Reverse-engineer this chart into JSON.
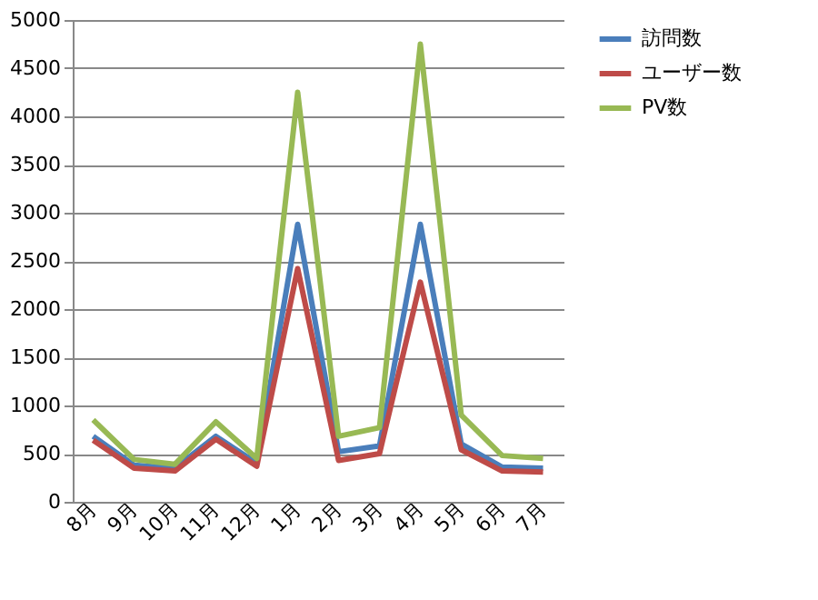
{
  "chart_data": {
    "type": "line",
    "categories": [
      "8月",
      "9月",
      "10月",
      "11月",
      "12月",
      "1月",
      "2月",
      "3月",
      "4月",
      "5月",
      "6月",
      "7月"
    ],
    "series": [
      {
        "name": "訪問数",
        "color": "#4a7ebb",
        "values": [
          680,
          380,
          350,
          680,
          400,
          2880,
          520,
          580,
          2880,
          600,
          360,
          350
        ]
      },
      {
        "name": "ユーザー数",
        "color": "#be4b48",
        "values": [
          640,
          350,
          320,
          650,
          370,
          2420,
          430,
          500,
          2280,
          540,
          320,
          310
        ]
      },
      {
        "name": "PV数",
        "color": "#98b954",
        "values": [
          850,
          440,
          390,
          830,
          450,
          4250,
          680,
          770,
          4750,
          900,
          480,
          450
        ]
      }
    ],
    "ylim": [
      0,
      5000
    ],
    "yticks": [
      0,
      500,
      1000,
      1500,
      2000,
      2500,
      3000,
      3500,
      4000,
      4500,
      5000
    ],
    "grid": "y",
    "legend": "right",
    "marker": "none",
    "line_style": "solid"
  }
}
